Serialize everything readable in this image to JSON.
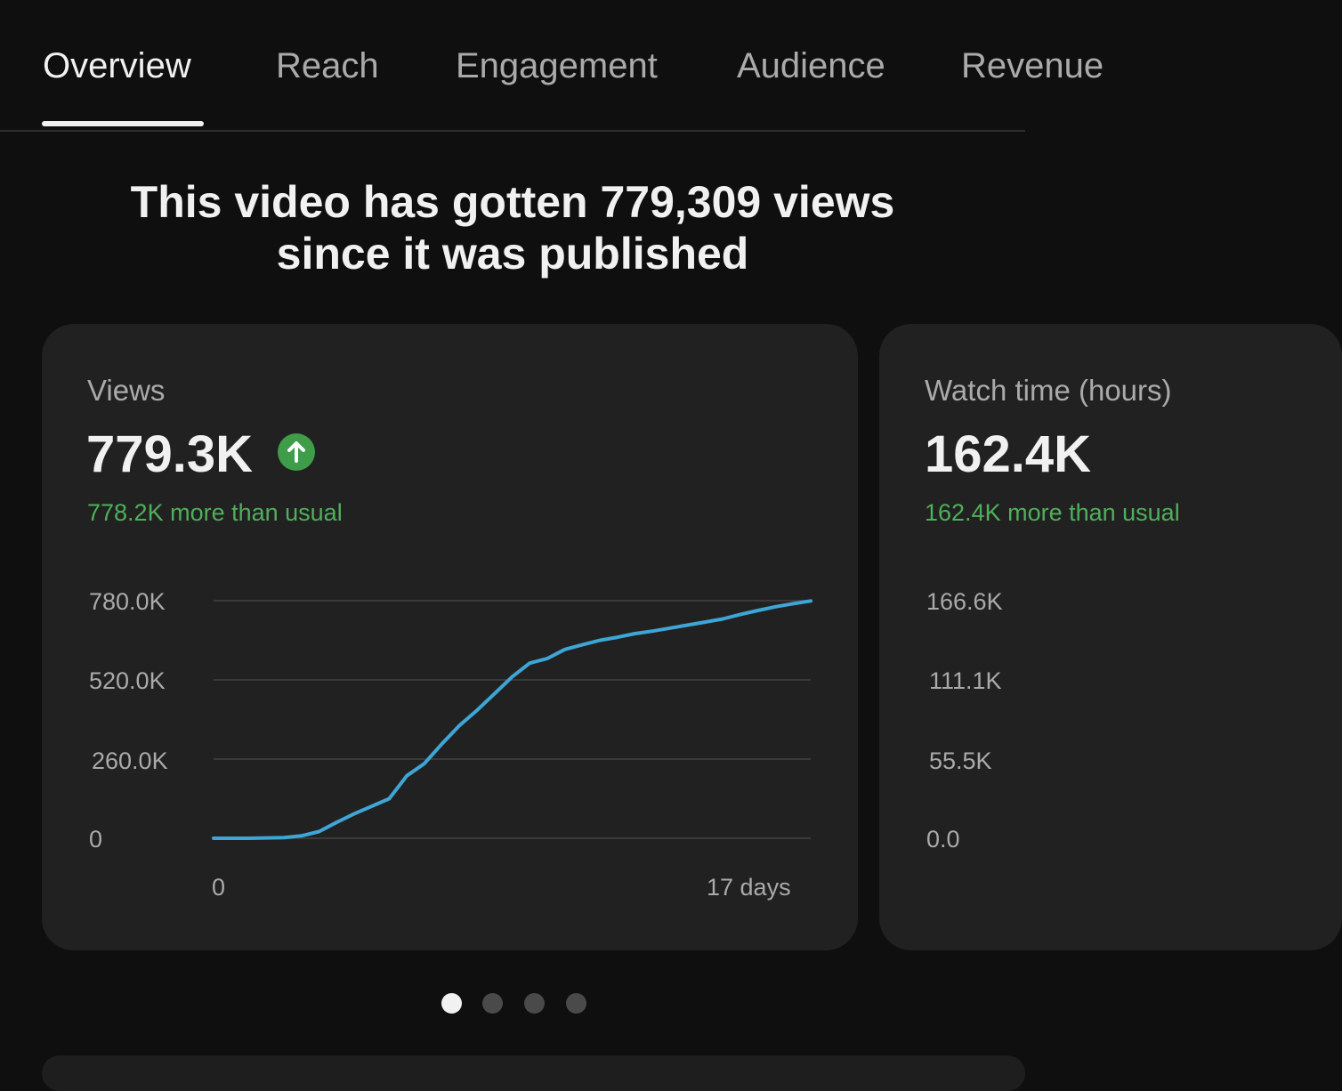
{
  "tabs": [
    {
      "label": "Overview",
      "active": true
    },
    {
      "label": "Reach",
      "active": false
    },
    {
      "label": "Engagement",
      "active": false
    },
    {
      "label": "Audience",
      "active": false
    },
    {
      "label": "Revenue",
      "active": false
    }
  ],
  "headline": {
    "line1": "This video has gotten 779,309 views",
    "line2": "since it was published"
  },
  "views_card": {
    "label": "Views",
    "value": "779.3K",
    "trend_icon": "arrow-up-circle-icon",
    "subtext": "778.2K more than usual",
    "y_ticks": [
      "780.0K",
      "520.0K",
      "260.0K",
      "0"
    ],
    "x_ticks": [
      "0",
      "17 days"
    ]
  },
  "watch_card": {
    "label": "Watch time (hours)",
    "value": "162.4K",
    "subtext": "162.4K more than usual",
    "y_ticks": [
      "166.6K",
      "111.1K",
      "55.5K",
      "0.0"
    ]
  },
  "pager": {
    "count": 4,
    "active_index": 0
  },
  "colors": {
    "background": "#0f0f0f",
    "card": "#212121",
    "positive": "#4fb05a",
    "line": "#3ea6d6",
    "gridline": "#3a3a3a"
  },
  "chart_data": {
    "type": "line",
    "title": "Views",
    "xlabel": "",
    "ylabel": "",
    "xlim": [
      0,
      17
    ],
    "ylim": [
      0,
      780000
    ],
    "x_ticks": [
      "0",
      "17 days"
    ],
    "y_ticks": [
      "0",
      "260.0K",
      "520.0K",
      "780.0K"
    ],
    "grid": true,
    "series": [
      {
        "x": [
          0,
          1,
          2,
          2.5,
          3,
          3.5,
          4,
          4.5,
          5,
          5.5,
          6,
          6.5,
          7,
          7.5,
          8,
          8.5,
          9,
          9.5,
          10,
          10.5,
          11,
          11.5,
          12,
          12.5,
          13,
          13.5,
          14,
          14.5,
          15,
          15.5,
          16,
          16.5,
          17
        ],
        "values": [
          0,
          0,
          2000,
          8000,
          22000,
          52000,
          80000,
          105000,
          130000,
          205000,
          245000,
          310000,
          370000,
          420000,
          475000,
          530000,
          575000,
          590000,
          620000,
          635000,
          650000,
          660000,
          672000,
          680000,
          690000,
          700000,
          710000,
          720000,
          735000,
          748000,
          760000,
          770000,
          779000
        ]
      }
    ]
  }
}
